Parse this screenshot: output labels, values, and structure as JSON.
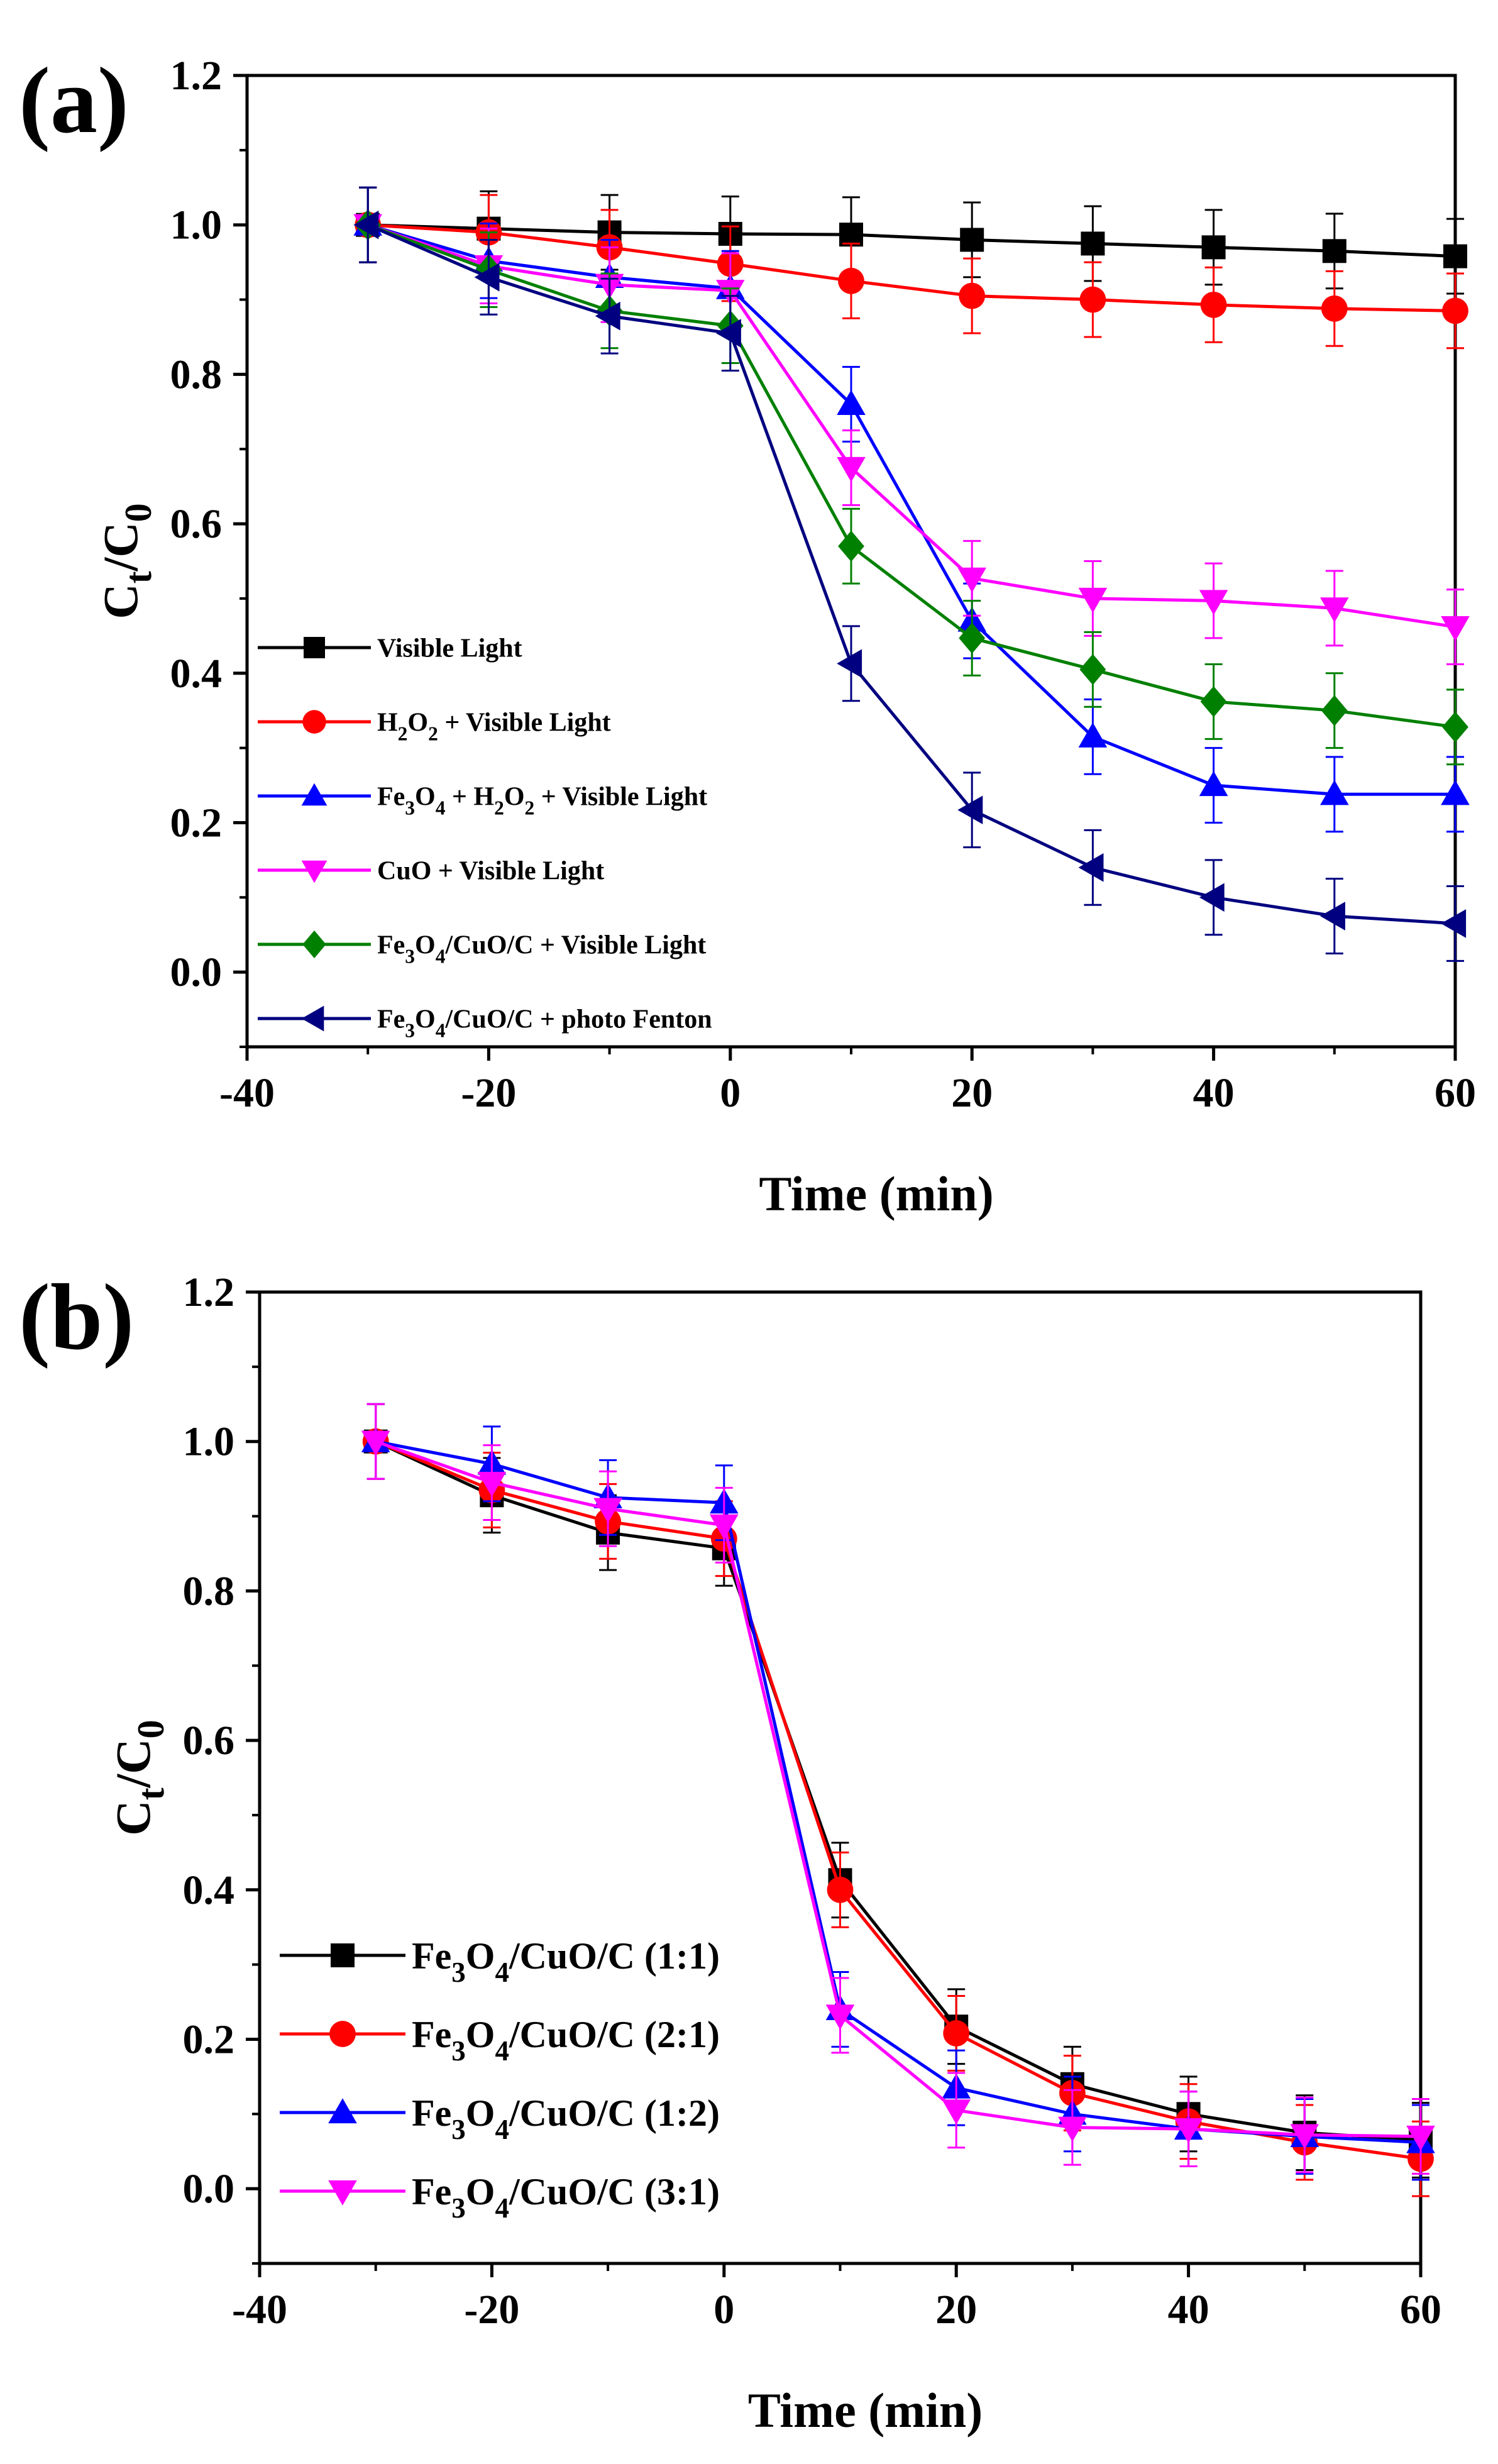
{
  "chart_data": [
    {
      "type": "line",
      "panel_label": "(a)",
      "xlabel": "Time (min)",
      "ylabel": "Ct/C0",
      "ylabel_parts": {
        "main": "C",
        "sub1": "t",
        "slash": "/C",
        "sub2": "0"
      },
      "xlim": [
        -40,
        60
      ],
      "ylim": [
        -0.1,
        1.2
      ],
      "xticks": [
        -40,
        -20,
        0,
        20,
        40,
        60
      ],
      "xtick_labels": [
        "-40",
        "-20",
        "0",
        "20",
        "40",
        "60"
      ],
      "yticks": [
        0.0,
        0.2,
        0.4,
        0.6,
        0.8,
        1.0,
        1.2
      ],
      "ytick_labels": [
        "0.0",
        "0.2",
        "0.4",
        "0.6",
        "0.8",
        "1.0",
        "1.2"
      ],
      "grid": false,
      "legend_position": "lower-left",
      "x": [
        -30,
        -20,
        -10,
        0,
        10,
        20,
        30,
        40,
        50,
        60
      ],
      "series": [
        {
          "name": "Visible Light",
          "legend_parts": [
            {
              "t": "Visible Light"
            }
          ],
          "color": "#000000",
          "marker": "square",
          "values": [
            1.0,
            0.995,
            0.99,
            0.988,
            0.987,
            0.98,
            0.975,
            0.97,
            0.965,
            0.958
          ],
          "error": 0.05
        },
        {
          "name": "H2O2 + Visible Light",
          "legend_parts": [
            {
              "t": "H"
            },
            {
              "t": "2",
              "sub": true
            },
            {
              "t": "O"
            },
            {
              "t": "2",
              "sub": true
            },
            {
              "t": " + Visible Light"
            }
          ],
          "color": "#ff0000",
          "marker": "circle",
          "values": [
            1.0,
            0.99,
            0.97,
            0.948,
            0.925,
            0.905,
            0.9,
            0.893,
            0.888,
            0.885
          ],
          "error": 0.05
        },
        {
          "name": "Fe3O4 + H2O2 + Visible Light",
          "legend_parts": [
            {
              "t": "Fe"
            },
            {
              "t": "3",
              "sub": true
            },
            {
              "t": "O"
            },
            {
              "t": "4",
              "sub": true
            },
            {
              "t": " + H"
            },
            {
              "t": "2",
              "sub": true
            },
            {
              "t": "O"
            },
            {
              "t": "2",
              "sub": true
            },
            {
              "t": " + Visible Light"
            }
          ],
          "color": "#0000ff",
          "marker": "triangle-up",
          "values": [
            1.0,
            0.952,
            0.93,
            0.915,
            0.76,
            0.47,
            0.315,
            0.25,
            0.238,
            0.238
          ],
          "error": 0.05
        },
        {
          "name": "CuO + Visible Light",
          "legend_parts": [
            {
              "t": "CuO + Visible Light"
            }
          ],
          "color": "#ff00ff",
          "marker": "triangle-down",
          "values": [
            1.0,
            0.945,
            0.92,
            0.912,
            0.675,
            0.527,
            0.5,
            0.497,
            0.487,
            0.462
          ],
          "error": 0.05
        },
        {
          "name": "Fe3O4/CuO/C + Visible Light",
          "legend_parts": [
            {
              "t": "Fe"
            },
            {
              "t": "3",
              "sub": true
            },
            {
              "t": "O"
            },
            {
              "t": "4",
              "sub": true
            },
            {
              "t": "/CuO/C + Visible Light"
            }
          ],
          "color": "#008000",
          "marker": "diamond",
          "values": [
            1.0,
            0.94,
            0.885,
            0.865,
            0.57,
            0.447,
            0.405,
            0.362,
            0.35,
            0.328
          ],
          "error": 0.05
        },
        {
          "name": "Fe3O4/CuO/C + photo Fenton",
          "legend_parts": [
            {
              "t": "Fe"
            },
            {
              "t": "3",
              "sub": true
            },
            {
              "t": "O"
            },
            {
              "t": "4",
              "sub": true
            },
            {
              "t": "/CuO/C + photo Fenton"
            }
          ],
          "color": "#000080",
          "marker": "triangle-left",
          "values": [
            1.0,
            0.93,
            0.878,
            0.855,
            0.413,
            0.217,
            0.14,
            0.1,
            0.075,
            0.065
          ],
          "error": 0.05
        }
      ]
    },
    {
      "type": "line",
      "panel_label": "(b)",
      "xlabel": "Time (min)",
      "ylabel": "Ct/C0",
      "ylabel_parts": {
        "main": "C",
        "sub1": "t",
        "slash": "/C",
        "sub2": "0"
      },
      "xlim": [
        -40,
        60
      ],
      "ylim": [
        -0.1,
        1.2
      ],
      "xticks": [
        -40,
        -20,
        0,
        20,
        40,
        60
      ],
      "xtick_labels": [
        "-40",
        "-20",
        "0",
        "20",
        "40",
        "60"
      ],
      "yticks": [
        0.0,
        0.2,
        0.4,
        0.6,
        0.8,
        1.0,
        1.2
      ],
      "ytick_labels": [
        "0.0",
        "0.2",
        "0.4",
        "0.6",
        "0.8",
        "1.0",
        "1.2"
      ],
      "grid": false,
      "legend_position": "lower-left",
      "x": [
        -30,
        -20,
        -10,
        0,
        10,
        20,
        30,
        40,
        50,
        60
      ],
      "series": [
        {
          "name": "Fe3O4/CuO/C (1:1)",
          "legend_parts": [
            {
              "t": "Fe"
            },
            {
              "t": "3",
              "sub": true
            },
            {
              "t": "O"
            },
            {
              "t": "4",
              "sub": true
            },
            {
              "t": "/CuO/C (1:1)"
            }
          ],
          "color": "#000000",
          "marker": "square",
          "values": [
            1.0,
            0.928,
            0.878,
            0.857,
            0.413,
            0.217,
            0.14,
            0.1,
            0.075,
            0.065
          ],
          "error": 0.05
        },
        {
          "name": "Fe3O4/CuO/C (2:1)",
          "legend_parts": [
            {
              "t": "Fe"
            },
            {
              "t": "3",
              "sub": true
            },
            {
              "t": "O"
            },
            {
              "t": "4",
              "sub": true
            },
            {
              "t": "/CuO/C (2:1)"
            }
          ],
          "color": "#ff0000",
          "marker": "circle",
          "values": [
            1.0,
            0.935,
            0.893,
            0.87,
            0.4,
            0.208,
            0.128,
            0.09,
            0.062,
            0.04
          ],
          "error": 0.05
        },
        {
          "name": "Fe3O4/CuO/C (1:2)",
          "legend_parts": [
            {
              "t": "Fe"
            },
            {
              "t": "3",
              "sub": true
            },
            {
              "t": "O"
            },
            {
              "t": "4",
              "sub": true
            },
            {
              "t": "/CuO/C (1:2)"
            }
          ],
          "color": "#0000ff",
          "marker": "triangle-up",
          "values": [
            1.0,
            0.97,
            0.925,
            0.918,
            0.24,
            0.135,
            0.1,
            0.08,
            0.07,
            0.062
          ],
          "error": 0.05
        },
        {
          "name": "Fe3O4/CuO/C (3:1)",
          "legend_parts": [
            {
              "t": "Fe"
            },
            {
              "t": "3",
              "sub": true
            },
            {
              "t": "O"
            },
            {
              "t": "4",
              "sub": true
            },
            {
              "t": "/CuO/C (3:1)"
            }
          ],
          "color": "#ff00ff",
          "marker": "triangle-down",
          "values": [
            1.0,
            0.945,
            0.91,
            0.888,
            0.232,
            0.105,
            0.082,
            0.08,
            0.072,
            0.07
          ],
          "error": 0.05
        }
      ]
    }
  ]
}
